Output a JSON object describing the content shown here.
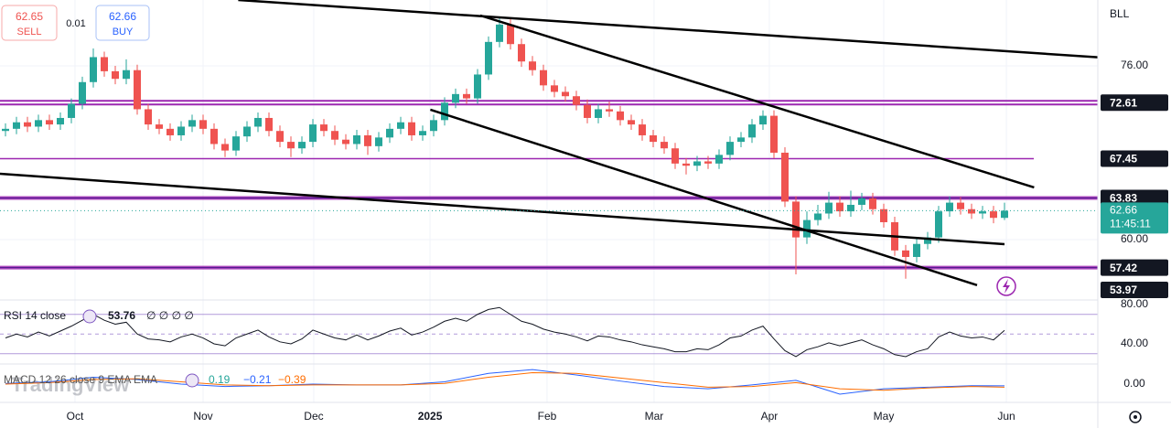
{
  "header": {
    "sell_price": "62.65",
    "sell": "SELL",
    "spread": "0.01",
    "buy_price": "62.66",
    "buy": "BUY",
    "symbol": "BLL",
    "watermark": "TradingView"
  },
  "chart_data": [
    {
      "type": "candlestick",
      "up_color": "#26a69a",
      "down_color": "#ef5350",
      "candles": [
        [
          70.0,
          70.7,
          69.5,
          70.2
        ],
        [
          70.2,
          71.3,
          69.7,
          70.8
        ],
        [
          70.8,
          71.3,
          69.9,
          70.4
        ],
        [
          70.4,
          71.5,
          69.9,
          71.0
        ],
        [
          71.0,
          71.5,
          70.1,
          70.6
        ],
        [
          70.6,
          71.7,
          70.1,
          71.2
        ],
        [
          71.2,
          73.0,
          70.7,
          72.5
        ],
        [
          72.5,
          75.0,
          72.0,
          74.5
        ],
        [
          74.5,
          77.6,
          74.0,
          76.8
        ],
        [
          76.8,
          77.3,
          75.0,
          75.5
        ],
        [
          75.5,
          76.0,
          74.3,
          74.8
        ],
        [
          74.8,
          76.6,
          74.3,
          75.6
        ],
        [
          75.6,
          76.1,
          71.5,
          72.0
        ],
        [
          72.0,
          72.5,
          70.1,
          70.6
        ],
        [
          70.6,
          71.1,
          69.7,
          70.2
        ],
        [
          70.2,
          70.7,
          69.1,
          69.6
        ],
        [
          69.6,
          70.9,
          69.1,
          70.4
        ],
        [
          70.4,
          71.5,
          69.9,
          71.0
        ],
        [
          71.0,
          71.5,
          69.7,
          70.2
        ],
        [
          70.2,
          70.7,
          68.3,
          68.8
        ],
        [
          68.8,
          69.3,
          67.6,
          68.2
        ],
        [
          68.2,
          70.0,
          67.7,
          69.5
        ],
        [
          69.5,
          70.9,
          69.0,
          70.4
        ],
        [
          70.4,
          71.7,
          69.9,
          71.2
        ],
        [
          71.2,
          71.7,
          69.5,
          70.0
        ],
        [
          70.0,
          70.5,
          68.5,
          69.0
        ],
        [
          69.0,
          69.5,
          67.6,
          68.4
        ],
        [
          68.4,
          69.5,
          67.9,
          69.0
        ],
        [
          69.0,
          71.1,
          68.5,
          70.6
        ],
        [
          70.6,
          71.1,
          69.5,
          70.0
        ],
        [
          70.0,
          70.5,
          68.7,
          69.2
        ],
        [
          69.2,
          69.7,
          68.3,
          68.8
        ],
        [
          68.8,
          70.1,
          68.3,
          69.6
        ],
        [
          69.6,
          70.1,
          67.8,
          68.6
        ],
        [
          68.6,
          69.9,
          68.1,
          69.4
        ],
        [
          69.4,
          70.7,
          68.9,
          70.2
        ],
        [
          70.2,
          71.3,
          69.7,
          70.8
        ],
        [
          70.8,
          71.3,
          69.1,
          69.6
        ],
        [
          69.6,
          70.5,
          69.1,
          70.0
        ],
        [
          70.0,
          71.5,
          69.5,
          71.0
        ],
        [
          71.0,
          73.1,
          70.5,
          72.6
        ],
        [
          72.6,
          73.9,
          72.1,
          73.4
        ],
        [
          73.4,
          73.9,
          72.5,
          73.0
        ],
        [
          73.0,
          75.7,
          72.5,
          75.2
        ],
        [
          75.2,
          78.7,
          74.7,
          78.2
        ],
        [
          78.2,
          80.4,
          77.7,
          79.8
        ],
        [
          79.8,
          80.3,
          77.5,
          78.0
        ],
        [
          78.0,
          78.5,
          75.9,
          76.4
        ],
        [
          76.4,
          76.9,
          75.1,
          75.6
        ],
        [
          75.6,
          76.1,
          73.7,
          74.2
        ],
        [
          74.2,
          74.7,
          73.1,
          73.6
        ],
        [
          73.6,
          74.1,
          72.7,
          73.2
        ],
        [
          73.2,
          73.7,
          71.9,
          72.4
        ],
        [
          72.4,
          72.9,
          70.7,
          71.2
        ],
        [
          71.2,
          72.5,
          70.7,
          72.0
        ],
        [
          72.0,
          72.7,
          71.3,
          71.8
        ],
        [
          71.8,
          72.3,
          70.5,
          71.0
        ],
        [
          71.0,
          71.5,
          70.1,
          70.6
        ],
        [
          70.6,
          71.1,
          69.1,
          69.6
        ],
        [
          69.6,
          70.1,
          68.5,
          69.0
        ],
        [
          69.0,
          69.5,
          67.9,
          68.4
        ],
        [
          68.4,
          68.9,
          66.5,
          67.0
        ],
        [
          67.0,
          67.5,
          66.0,
          66.8
        ],
        [
          66.8,
          67.7,
          66.3,
          67.2
        ],
        [
          67.2,
          67.7,
          66.5,
          67.0
        ],
        [
          67.0,
          68.3,
          66.5,
          67.8
        ],
        [
          67.8,
          69.5,
          67.3,
          69.0
        ],
        [
          69.0,
          69.9,
          68.5,
          69.4
        ],
        [
          69.4,
          71.1,
          68.9,
          70.6
        ],
        [
          70.6,
          71.9,
          70.1,
          71.4
        ],
        [
          71.4,
          71.9,
          67.5,
          68.0
        ],
        [
          68.0,
          68.5,
          63.0,
          63.5
        ],
        [
          63.5,
          64.0,
          56.8,
          60.2
        ],
        [
          60.2,
          62.6,
          59.6,
          61.8
        ],
        [
          61.8,
          63.2,
          61.3,
          62.4
        ],
        [
          62.4,
          64.4,
          61.9,
          63.4
        ],
        [
          63.4,
          64.0,
          62.1,
          62.6
        ],
        [
          62.6,
          64.5,
          62.1,
          63.2
        ],
        [
          63.2,
          64.3,
          62.7,
          63.8
        ],
        [
          63.8,
          64.3,
          62.3,
          62.8
        ],
        [
          62.8,
          63.3,
          61.1,
          61.6
        ],
        [
          61.6,
          62.1,
          58.5,
          59.0
        ],
        [
          59.0,
          59.5,
          56.4,
          58.4
        ],
        [
          58.4,
          60.1,
          57.9,
          59.6
        ],
        [
          59.6,
          60.7,
          59.1,
          60.2
        ],
        [
          60.2,
          63.1,
          59.7,
          62.6
        ],
        [
          62.6,
          64.0,
          62.1,
          63.4
        ],
        [
          63.4,
          63.9,
          62.3,
          62.8
        ],
        [
          62.8,
          63.3,
          61.9,
          62.4
        ],
        [
          62.4,
          63.1,
          61.9,
          62.6
        ],
        [
          62.6,
          63.1,
          61.5,
          62.0
        ],
        [
          62.0,
          63.4,
          61.8,
          62.66
        ]
      ],
      "xlim": [
        -0.5,
        99.5
      ],
      "xticks": [
        {
          "value": 6.33,
          "label": "Oct"
        },
        {
          "value": 18,
          "label": "Nov"
        },
        {
          "value": 28.08,
          "label": "Dec"
        },
        {
          "value": 38.67,
          "label": "2025"
        },
        {
          "value": 49.33,
          "label": "Feb"
        },
        {
          "value": 59.08,
          "label": "Mar"
        },
        {
          "value": 69.58,
          "label": "Apr"
        },
        {
          "value": 80,
          "label": "May"
        },
        {
          "value": 91.17,
          "label": "Jun"
        }
      ],
      "ylim": [
        54.44,
        82.06
      ],
      "yticks": [
        {
          "value": 76,
          "label": "76.00"
        },
        {
          "value": 60,
          "label": "60.00"
        }
      ],
      "grid": true,
      "level_color": "#9c27b0",
      "levels": [
        {
          "value": 72.61,
          "style": "double"
        },
        {
          "value": 67.45,
          "style": "thin"
        },
        {
          "value": 63.83,
          "style": "thick"
        },
        {
          "value": 57.42,
          "style": "thick"
        }
      ],
      "markers": [
        53.97
      ],
      "trend_lines": [
        {
          "x": [
            21.2,
            99.9
          ],
          "y": [
            82.06,
            76.76
          ]
        },
        {
          "x": [
            43.25,
            93.7
          ],
          "y": [
            80.63,
            64.8
          ]
        },
        {
          "x": [
            38.7,
            88.5
          ],
          "y": [
            71.96,
            55.8
          ]
        },
        {
          "x": [
            -0.5,
            91
          ],
          "y": [
            66.06,
            59.58
          ]
        }
      ],
      "last_price": 62.66,
      "countdown": "11:45:11"
    },
    {
      "type": "line",
      "title": "RSI 14 close",
      "value_label": "53.76",
      "flags": "∅ ∅ ∅ ∅",
      "color": "#7e57c2",
      "line_color": "#131722",
      "values": [
        46,
        50,
        47,
        52,
        48,
        53,
        58,
        64,
        70,
        64,
        60,
        62,
        50,
        45,
        44,
        42,
        47,
        50,
        46,
        40,
        38,
        46,
        50,
        54,
        47,
        42,
        40,
        45,
        54,
        50,
        46,
        44,
        49,
        44,
        48,
        53,
        56,
        49,
        52,
        57,
        63,
        66,
        63,
        70,
        75,
        77,
        70,
        63,
        60,
        55,
        52,
        50,
        47,
        43,
        48,
        47,
        44,
        42,
        39,
        37,
        35,
        32,
        32,
        35,
        34,
        39,
        46,
        48,
        54,
        58,
        45,
        33,
        27,
        34,
        37,
        41,
        38,
        41,
        44,
        39,
        35,
        29,
        27,
        32,
        35,
        47,
        52,
        48,
        46,
        47,
        44,
        53.76
      ],
      "ylim": [
        19.5,
        84.65
      ],
      "yticks": [
        {
          "value": 40,
          "label": "40.00"
        },
        {
          "value": 80,
          "label": "80.00"
        }
      ],
      "bands": [
        70,
        50,
        30
      ]
    },
    {
      "type": "line",
      "title": "MACD 12 26 close 9 EMA EMA",
      "legend_values": [
        "0.19",
        "−0.21",
        "−0.39"
      ],
      "legend_colors": [
        "#26a69a",
        "#2962ff",
        "#ff6d00"
      ],
      "x": [
        0,
        4,
        8,
        12,
        16,
        20,
        24,
        28,
        32,
        36,
        40,
        44,
        48,
        52,
        56,
        60,
        64,
        68,
        72,
        76,
        80,
        84,
        88,
        91
      ],
      "series": [
        {
          "color": "#2962ff",
          "values": [
            0.1,
            0.3,
            0.9,
            0.6,
            0.0,
            -0.3,
            -0.2,
            0.0,
            -0.1,
            -0.1,
            0.3,
            1.4,
            1.9,
            1.2,
            0.4,
            -0.3,
            -0.6,
            -0.1,
            0.5,
            -1.3,
            -0.6,
            -0.4,
            -0.2,
            -0.21
          ]
        },
        {
          "color": "#ff6d00",
          "values": [
            0.0,
            0.2,
            0.6,
            0.7,
            0.3,
            -0.1,
            -0.2,
            -0.1,
            -0.1,
            -0.1,
            0.1,
            0.9,
            1.5,
            1.4,
            0.8,
            0.2,
            -0.4,
            -0.3,
            0.2,
            -0.6,
            -0.8,
            -0.5,
            -0.3,
            -0.39
          ]
        }
      ],
      "ylim": [
        -2.375,
        2.625
      ],
      "yticks": [
        {
          "value": 0,
          "label": "0.00"
        }
      ]
    }
  ]
}
